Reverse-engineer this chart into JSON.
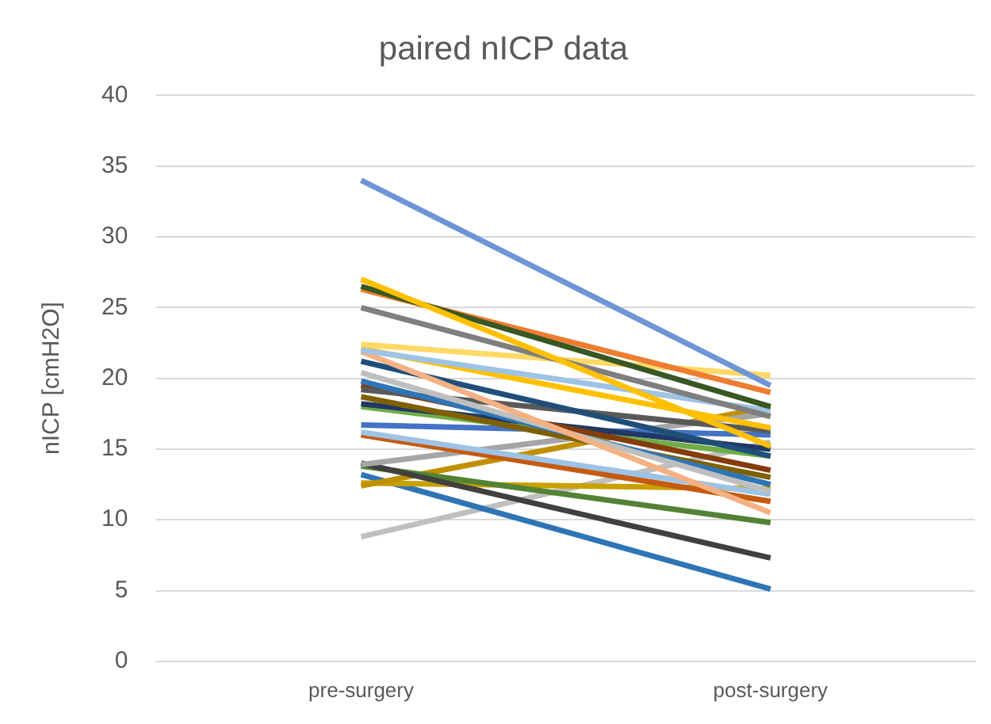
{
  "chart_data": {
    "type": "line",
    "title": "paired nICP data",
    "ylabel": "nICP [cmH2O]",
    "categories": [
      "pre-surgery",
      "post-surgery"
    ],
    "ylim": [
      0,
      40
    ],
    "yticks": [
      0,
      5,
      10,
      15,
      20,
      25,
      30,
      35,
      40
    ],
    "grid": "y",
    "legend": false,
    "marker": "none",
    "line_style": "solid",
    "series": [
      {
        "color": "#6f95d6",
        "values": [
          34,
          19.5
        ]
      },
      {
        "color": "#ffc000",
        "values": [
          27,
          15.2
        ]
      },
      {
        "color": "#385723",
        "values": [
          26.5,
          18
        ]
      },
      {
        "color": "#ed7d31",
        "values": [
          26.3,
          19
        ]
      },
      {
        "color": "#7f7f7f",
        "values": [
          25,
          17.3
        ]
      },
      {
        "color": "#ffd966",
        "values": [
          22.4,
          20.2
        ]
      },
      {
        "color": "#9dc3e6",
        "values": [
          22,
          17.7
        ]
      },
      {
        "color": "#ffc000",
        "values": [
          22.1,
          16.5
        ]
      },
      {
        "color": "#f4b183",
        "values": [
          21.9,
          10.5
        ]
      },
      {
        "color": "#1f4e79",
        "values": [
          21.2,
          14.5
        ]
      },
      {
        "color": "#bfbfbf",
        "values": [
          20.4,
          12
        ]
      },
      {
        "color": "#2e75b6",
        "values": [
          19.8,
          12.5
        ]
      },
      {
        "color": "#595959",
        "values": [
          19.2,
          16.3
        ]
      },
      {
        "color": "#843c0c",
        "values": [
          19.5,
          13.5
        ]
      },
      {
        "color": "#7f6000",
        "values": [
          18.7,
          13
        ]
      },
      {
        "color": "#203864",
        "values": [
          18.2,
          15
        ]
      },
      {
        "color": "#70ad47",
        "values": [
          18,
          14.5
        ]
      },
      {
        "color": "#4472c4",
        "values": [
          16.7,
          16
        ]
      },
      {
        "color": "#9dc3e6",
        "values": [
          16.2,
          11.8
        ]
      },
      {
        "color": "#c55a11",
        "values": [
          16,
          11.3
        ]
      },
      {
        "color": "#a5a5a5",
        "values": [
          13.9,
          17.5
        ]
      },
      {
        "color": "#404040",
        "values": [
          14,
          7.3
        ]
      },
      {
        "color": "#548235",
        "values": [
          13.8,
          9.8
        ]
      },
      {
        "color": "#bf9000",
        "values": [
          12.4,
          18
        ]
      },
      {
        "color": "#c9a000",
        "values": [
          12.6,
          12.2
        ]
      },
      {
        "color": "#2e75b6",
        "values": [
          13.2,
          5.1
        ]
      },
      {
        "color": "#bfbfbf",
        "values": [
          8.8,
          15.5
        ]
      }
    ]
  }
}
